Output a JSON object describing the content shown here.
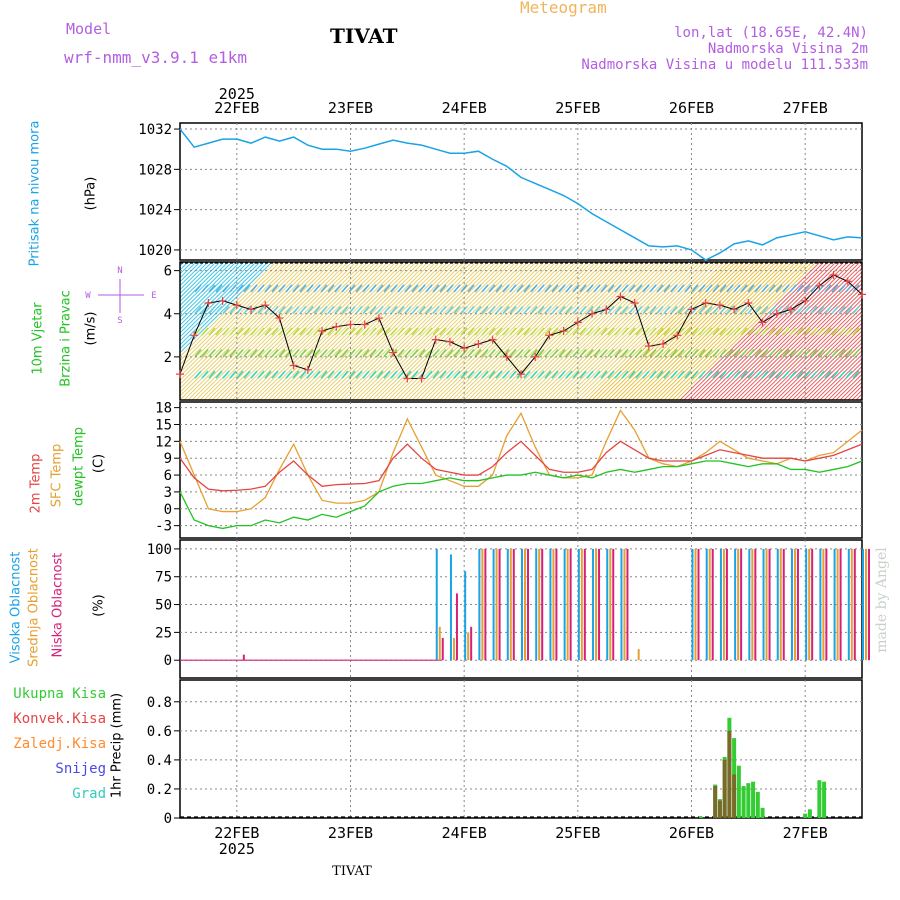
{
  "header": {
    "model_label": "Model",
    "model_name": "wrf-nmm_v3.9.1 e1km",
    "title": "TIVAT",
    "meteogram_label": "Meteogram",
    "lonlat": "lon,lat (18.65E, 42.4N)",
    "altitude": "Nadmorska Visina 2m",
    "model_altitude": "Nadmorska Visina u modelu 111.533m",
    "footer_station": "TIVAT",
    "credit": "made by Angel"
  },
  "colors": {
    "pressure": "#1aa3e6",
    "temp2m": "#e64545",
    "sfc": "#e6a030",
    "dewpt": "#22c322",
    "high_cloud": "#1aa3e6",
    "mid_cloud": "#e6a030",
    "low_cloud": "#d6207a",
    "total_precip": "#33cc33",
    "convective": "#e64545",
    "freezing": "#ff8c30",
    "snow": "#4a4ae6",
    "hail": "#33ccbb",
    "model_purple": "#b35ee0",
    "meteogram_orange": "#f0b45a"
  },
  "axes": {
    "year": "2025",
    "dates": [
      "22FEB",
      "23FEB",
      "24FEB",
      "25FEB",
      "26FEB",
      "27FEB"
    ]
  },
  "panels": {
    "pressure": {
      "label1": "Pritisak na nivou mora",
      "unit": "(hPa)",
      "ticks": [
        "1020",
        "1024",
        "1028",
        "1032"
      ]
    },
    "wind": {
      "label1": "10m Vjetar",
      "label2": "Brzina i Pravac",
      "unit": "(m/s)",
      "ticks": [
        "2",
        "4",
        "6"
      ],
      "compass_n": "N",
      "compass_s": "S",
      "compass_w": "W",
      "compass_e": "E"
    },
    "temp": {
      "label1": "2m Temp",
      "label2": "SFC Temp",
      "label3": "dewpt Temp",
      "unit": "(C)",
      "ticks": [
        "-3",
        "0",
        "3",
        "6",
        "9",
        "12",
        "15",
        "18"
      ]
    },
    "cloud": {
      "label1": "Visoka Oblacnost",
      "label2": "Srednja Oblacnost",
      "label3": "Niska Oblacnost",
      "unit": "(%)",
      "ticks": [
        "0",
        "25",
        "50",
        "75",
        "100"
      ]
    },
    "precip": {
      "label": "1hr Precip (mm)",
      "ticks": [
        "0",
        "0.2",
        "0.4",
        "0.6",
        "0.8"
      ],
      "legend": [
        "Ukupna Kisa",
        "Konvek.Kisa",
        "Zaledj.Kisa",
        "Snijeg",
        "Grad"
      ]
    }
  },
  "chart_data": [
    {
      "type": "line",
      "title": "",
      "ylabel": "Pritisak na nivou mora (hPa)",
      "x": [
        "21FEB12",
        "21FEB15",
        "21FEB18",
        "21FEB21",
        "22FEB00",
        "22FEB03",
        "22FEB06",
        "22FEB09",
        "22FEB12",
        "22FEB15",
        "22FEB18",
        "22FEB21",
        "23FEB00",
        "23FEB03",
        "23FEB06",
        "23FEB09",
        "23FEB12",
        "23FEB15",
        "23FEB18",
        "23FEB21",
        "24FEB00",
        "24FEB03",
        "24FEB06",
        "24FEB09",
        "24FEB12",
        "24FEB15",
        "24FEB18",
        "24FEB21",
        "25FEB00",
        "25FEB03",
        "25FEB06",
        "25FEB09",
        "25FEB12",
        "25FEB15",
        "25FEB18",
        "25FEB21",
        "26FEB00",
        "26FEB03",
        "26FEB06",
        "26FEB09",
        "26FEB12",
        "26FEB15",
        "26FEB18",
        "26FEB21",
        "27FEB00",
        "27FEB03",
        "27FEB06",
        "27FEB09",
        "27FEB12"
      ],
      "series": [
        {
          "values": [
            1032.0,
            1030.2,
            1030.6,
            1031.0,
            1031.0,
            1030.6,
            1031.2,
            1030.8,
            1031.2,
            1030.4,
            1030.0,
            1030.0,
            1029.8,
            1030.1,
            1030.5,
            1030.9,
            1030.6,
            1030.4,
            1030.0,
            1029.6,
            1029.6,
            1029.8,
            1029.0,
            1028.3,
            1027.2,
            1026.6,
            1026.0,
            1025.4,
            1024.6,
            1023.6,
            1022.8,
            1022.0,
            1021.2,
            1020.4,
            1020.3,
            1020.4,
            1020.0,
            1019.0,
            1019.7,
            1020.6,
            1020.9,
            1020.5,
            1021.2,
            1021.5,
            1021.8,
            1021.4,
            1021.0,
            1021.3,
            1021.2
          ]
        }
      ],
      "ylim": [
        1019,
        1032
      ]
    },
    {
      "type": "line",
      "title": "",
      "ylabel": "10m Vjetar Brzina i Pravac (m/s)",
      "x": [
        "21FEB12",
        "21FEB15",
        "21FEB18",
        "21FEB21",
        "22FEB00",
        "22FEB03",
        "22FEB06",
        "22FEB09",
        "22FEB12",
        "22FEB15",
        "22FEB18",
        "22FEB21",
        "23FEB00",
        "23FEB03",
        "23FEB06",
        "23FEB09",
        "23FEB12",
        "23FEB15",
        "23FEB18",
        "23FEB21",
        "24FEB00",
        "24FEB03",
        "24FEB06",
        "24FEB09",
        "24FEB12",
        "24FEB15",
        "24FEB18",
        "24FEB21",
        "25FEB00",
        "25FEB03",
        "25FEB06",
        "25FEB09",
        "25FEB12",
        "25FEB15",
        "25FEB18",
        "25FEB21",
        "26FEB00",
        "26FEB03",
        "26FEB06",
        "26FEB09",
        "26FEB12",
        "26FEB15",
        "26FEB18",
        "26FEB21",
        "27FEB00",
        "27FEB03",
        "27FEB06",
        "27FEB09",
        "27FEB12"
      ],
      "series": [
        {
          "values": [
            1.2,
            3.0,
            4.5,
            4.6,
            4.4,
            4.2,
            4.4,
            3.8,
            1.6,
            1.4,
            3.2,
            3.4,
            3.5,
            3.5,
            3.8,
            2.2,
            1.0,
            1.0,
            2.8,
            2.7,
            2.4,
            2.6,
            2.8,
            2.0,
            1.2,
            2.0,
            3.0,
            3.2,
            3.6,
            4.0,
            4.2,
            4.8,
            4.5,
            2.5,
            2.6,
            3.0,
            4.2,
            4.5,
            4.4,
            4.2,
            4.5,
            3.6,
            4.0,
            4.2,
            4.6,
            5.3,
            5.8,
            5.5,
            4.9
          ]
        }
      ],
      "ylim": [
        0,
        6.4
      ]
    },
    {
      "type": "line",
      "title": "",
      "ylabel": "(C)",
      "x": [
        "21FEB12",
        "21FEB15",
        "21FEB18",
        "21FEB21",
        "22FEB00",
        "22FEB03",
        "22FEB06",
        "22FEB09",
        "22FEB12",
        "22FEB15",
        "22FEB18",
        "22FEB21",
        "23FEB00",
        "23FEB03",
        "23FEB06",
        "23FEB09",
        "23FEB12",
        "23FEB15",
        "23FEB18",
        "23FEB21",
        "24FEB00",
        "24FEB03",
        "24FEB06",
        "24FEB09",
        "24FEB12",
        "24FEB15",
        "24FEB18",
        "24FEB21",
        "25FEB00",
        "25FEB03",
        "25FEB06",
        "25FEB09",
        "25FEB12",
        "25FEB15",
        "25FEB18",
        "25FEB21",
        "26FEB00",
        "26FEB03",
        "26FEB06",
        "26FEB09",
        "26FEB12",
        "26FEB15",
        "26FEB18",
        "26FEB21",
        "27FEB00",
        "27FEB03",
        "27FEB06",
        "27FEB09",
        "27FEB12"
      ],
      "series": [
        {
          "name": "2m Temp",
          "values": [
            9.0,
            5.5,
            3.5,
            3.2,
            3.3,
            3.5,
            4.0,
            6.5,
            8.5,
            6.0,
            4.0,
            4.3,
            4.4,
            4.5,
            5.0,
            9.0,
            11.5,
            9.0,
            7.0,
            6.5,
            6.0,
            6.0,
            7.5,
            10.0,
            12.0,
            9.5,
            7.0,
            6.5,
            6.5,
            7.0,
            10.0,
            12.0,
            10.5,
            9.0,
            8.5,
            8.5,
            8.5,
            9.5,
            10.5,
            10.0,
            9.5,
            9.0,
            9.0,
            9.0,
            8.5,
            9.0,
            9.5,
            10.5,
            11.5
          ]
        },
        {
          "name": "SFC Temp",
          "values": [
            12.0,
            6.0,
            0.0,
            -0.5,
            -0.5,
            0.0,
            2.0,
            7.0,
            11.5,
            6.0,
            1.5,
            1.0,
            1.0,
            1.5,
            3.0,
            10.0,
            16.0,
            11.0,
            6.0,
            5.0,
            4.0,
            4.0,
            6.0,
            13.0,
            17.0,
            11.0,
            6.0,
            5.5,
            5.5,
            6.0,
            12.0,
            17.5,
            14.0,
            9.0,
            8.0,
            7.5,
            8.5,
            10.0,
            12.0,
            10.5,
            9.0,
            8.5,
            8.0,
            9.0,
            8.5,
            9.5,
            10.0,
            12.0,
            14.0
          ]
        },
        {
          "name": "dewpt Temp",
          "values": [
            3.0,
            -2.0,
            -3.0,
            -3.5,
            -3.0,
            -3.0,
            -2.0,
            -2.5,
            -1.5,
            -2.0,
            -1.0,
            -1.5,
            -0.5,
            0.5,
            3.0,
            4.0,
            4.5,
            4.5,
            5.0,
            5.5,
            5.0,
            5.0,
            5.5,
            6.0,
            6.0,
            6.5,
            6.0,
            5.5,
            6.0,
            5.5,
            6.5,
            7.0,
            6.5,
            7.0,
            7.5,
            7.5,
            8.0,
            8.5,
            8.5,
            8.0,
            7.5,
            8.0,
            8.0,
            7.0,
            7.0,
            6.5,
            7.0,
            7.5,
            8.5
          ]
        }
      ],
      "ylim": [
        -5,
        19
      ]
    },
    {
      "type": "bar",
      "title": "",
      "ylabel": "(%)",
      "x": [
        "21FEB12",
        "21FEB15",
        "21FEB18",
        "21FEB21",
        "22FEB00",
        "22FEB03",
        "22FEB06",
        "22FEB09",
        "22FEB12",
        "22FEB15",
        "22FEB18",
        "22FEB21",
        "23FEB00",
        "23FEB03",
        "23FEB06",
        "23FEB09",
        "23FEB12",
        "23FEB15",
        "23FEB18",
        "23FEB21",
        "24FEB00",
        "24FEB03",
        "24FEB06",
        "24FEB09",
        "24FEB12",
        "24FEB15",
        "24FEB18",
        "24FEB21",
        "25FEB00",
        "25FEB03",
        "25FEB06",
        "25FEB09",
        "25FEB12",
        "25FEB15",
        "25FEB18",
        "25FEB21",
        "26FEB00",
        "26FEB03",
        "26FEB06",
        "26FEB09",
        "26FEB12",
        "26FEB15",
        "26FEB18",
        "26FEB21",
        "27FEB00",
        "27FEB03",
        "27FEB06",
        "27FEB09",
        "27FEB12"
      ],
      "series": [
        {
          "name": "Visoka Oblacnost",
          "values": [
            0,
            0,
            0,
            0,
            0,
            0,
            0,
            0,
            0,
            0,
            0,
            0,
            0,
            0,
            0,
            0,
            0,
            0,
            100,
            95,
            80,
            100,
            100,
            100,
            100,
            100,
            100,
            100,
            100,
            100,
            100,
            100,
            0,
            0,
            0,
            0,
            100,
            100,
            100,
            100,
            100,
            100,
            100,
            100,
            100,
            100,
            100,
            100,
            100
          ]
        },
        {
          "name": "Srednja Oblacnost",
          "values": [
            0,
            0,
            0,
            0,
            0,
            0,
            0,
            0,
            0,
            0,
            0,
            0,
            0,
            0,
            0,
            0,
            0,
            0,
            30,
            20,
            25,
            100,
            100,
            100,
            100,
            100,
            100,
            100,
            100,
            100,
            100,
            100,
            10,
            0,
            0,
            0,
            100,
            100,
            100,
            100,
            100,
            100,
            100,
            100,
            100,
            100,
            100,
            100,
            100
          ]
        },
        {
          "name": "Niska Oblacnost",
          "values": [
            0,
            0,
            0,
            0,
            5,
            0,
            0,
            0,
            0,
            0,
            0,
            0,
            0,
            0,
            0,
            0,
            0,
            0,
            20,
            60,
            30,
            100,
            100,
            100,
            100,
            100,
            100,
            100,
            100,
            100,
            100,
            100,
            0,
            0,
            0,
            0,
            100,
            100,
            100,
            100,
            100,
            100,
            100,
            100,
            100,
            100,
            100,
            100,
            100
          ]
        }
      ],
      "ylim": [
        0,
        100
      ]
    },
    {
      "type": "bar",
      "title": "",
      "ylabel": "1hr Precip (mm)",
      "x": [
        "26FEB02",
        "26FEB05",
        "26FEB06",
        "26FEB07",
        "26FEB08",
        "26FEB09",
        "26FEB10",
        "26FEB11",
        "26FEB12",
        "26FEB13",
        "26FEB14",
        "26FEB15",
        "27FEB00",
        "27FEB01",
        "27FEB03",
        "27FEB04"
      ],
      "series": [
        {
          "name": "Ukupna Kisa",
          "values": [
            0.01,
            0.23,
            0.13,
            0.42,
            0.69,
            0.55,
            0.36,
            0.22,
            0.24,
            0.25,
            0.18,
            0.07,
            0.03,
            0.06,
            0.26,
            0.25
          ]
        },
        {
          "name": "Konvek.Kisa",
          "values": [
            0.0,
            0.22,
            0.12,
            0.4,
            0.6,
            0.3,
            0.0,
            0.0,
            0.0,
            0.0,
            0.0,
            0.0,
            0.0,
            0.0,
            0.0,
            0.0
          ]
        }
      ],
      "ylim": [
        0,
        0.95
      ]
    }
  ]
}
